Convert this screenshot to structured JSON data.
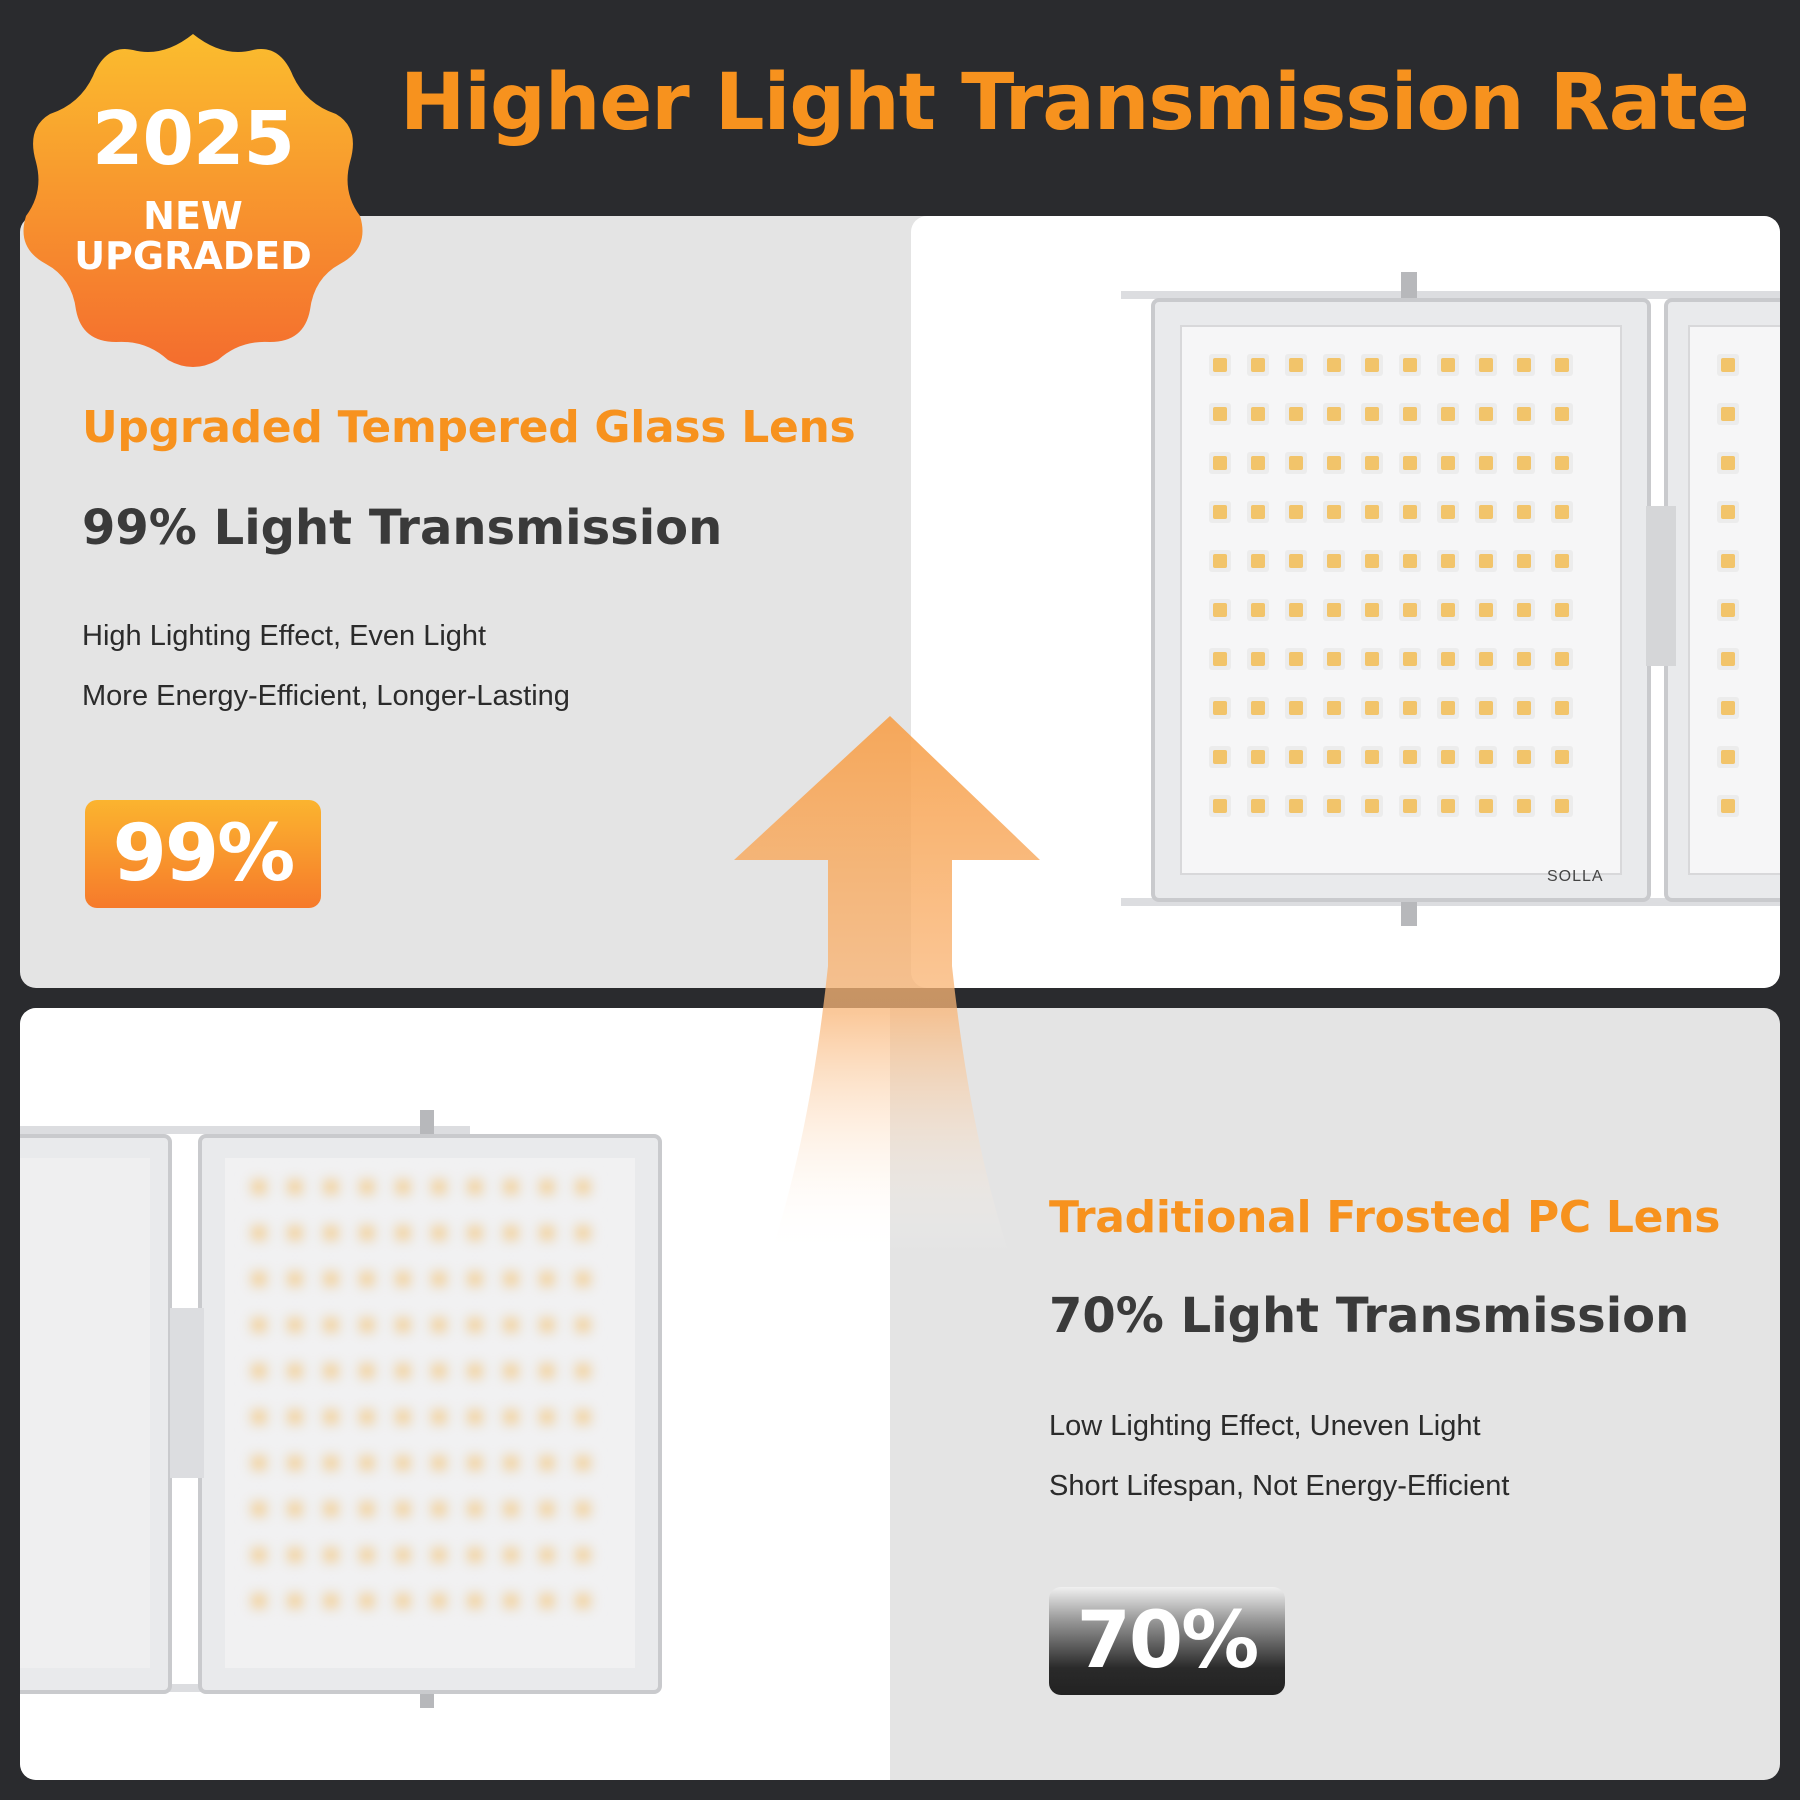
{
  "header": {
    "title": "Higher Light Transmission Rate"
  },
  "sticker": {
    "year": "2025",
    "line1": "NEW",
    "line2": "UPGRADED"
  },
  "glass": {
    "title": "Upgraded Tempered Glass Lens",
    "transmission": "99% Light Transmission",
    "feature1": "High Lighting Effect, Even Light",
    "feature2": "More Energy-Efficient, Longer-Lasting",
    "percent": "99%",
    "brand": "SOLLA"
  },
  "pc": {
    "title": "Traditional Frosted PC Lens",
    "transmission": "70% Light Transmission",
    "feature1": "Low Lighting Effect, Uneven Light",
    "feature2": "Short Lifespan, Not Energy-Efficient",
    "percent": "70%"
  },
  "colors": {
    "accent": "#f7921e",
    "background": "#2a2b2e",
    "panel": "#e4e4e4",
    "led": "#f2c46a"
  },
  "icons": [
    "upgrade-badge",
    "upward-arrow",
    "floodlight-glass",
    "floodlight-frosted"
  ]
}
